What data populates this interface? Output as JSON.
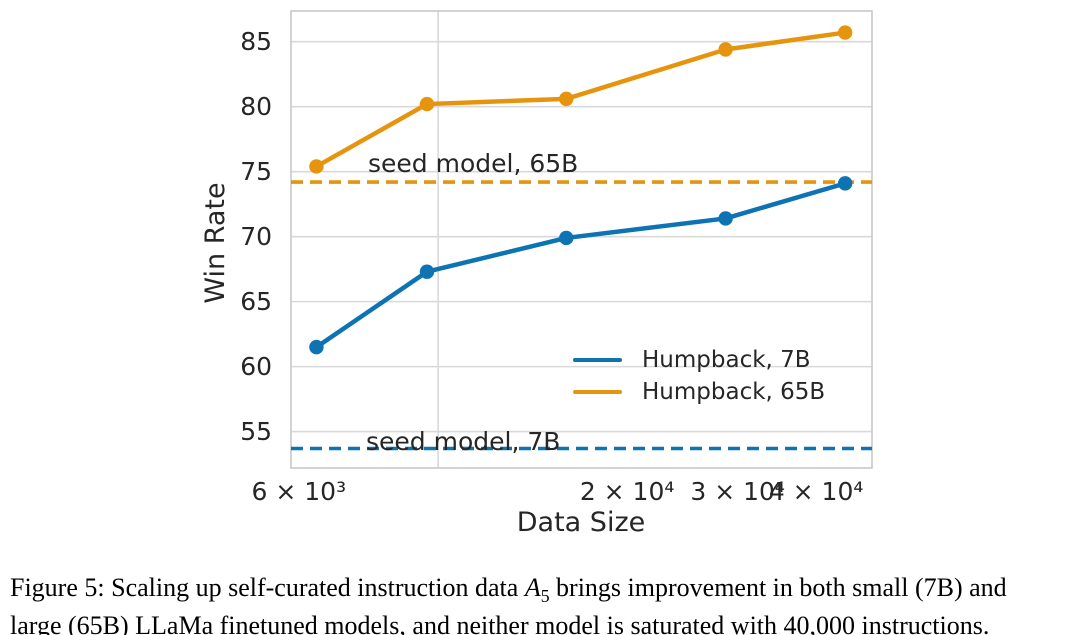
{
  "page": {
    "background": "#ffffff"
  },
  "chart_data": {
    "type": "line",
    "title": "",
    "xlabel": "Data Size",
    "ylabel": "Win Rate",
    "x_scale": "log",
    "xlim": [
      5830,
      49100
    ],
    "ylim": [
      52.2,
      87.36
    ],
    "grid": true,
    "legend_position": "center right, frameless",
    "x": [
      6400,
      9600,
      16000,
      28700,
      44500
    ],
    "series": [
      {
        "name": "Humpback, 7B",
        "color": "#0D73B2",
        "values": [
          61.5,
          67.3,
          69.9,
          71.4,
          74.1
        ]
      },
      {
        "name": "Humpback, 65B",
        "color": "#E6940E",
        "values": [
          75.4,
          80.2,
          80.6,
          84.4,
          85.7
        ]
      }
    ],
    "baselines": [
      {
        "label": "seed model, 7B",
        "value": 53.7,
        "color": "#0D73B2",
        "style": "dashed"
      },
      {
        "label": "seed model, 65B",
        "value": 74.2,
        "color": "#E6940E",
        "style": "dashed"
      }
    ],
    "y_ticks": [
      {
        "value": 85,
        "label": "85"
      },
      {
        "value": 80,
        "label": "80"
      },
      {
        "value": 75,
        "label": "75"
      },
      {
        "value": 70,
        "label": "70"
      },
      {
        "value": 65,
        "label": "65"
      },
      {
        "value": 60,
        "label": "60"
      },
      {
        "value": 55,
        "label": "55"
      }
    ],
    "x_ticks": [
      {
        "value": 6000,
        "label": "6 × 10³"
      },
      {
        "value": 20000,
        "label": "2 × 10⁴"
      },
      {
        "value": 30000,
        "label": "3 × 10⁴"
      },
      {
        "value": 40000,
        "label": "4 × 10⁴"
      }
    ],
    "x_gridlines": [
      10000
    ],
    "colors": {
      "grid": "#D9D9D9",
      "spine": "#C8C8C8",
      "text": "#262626"
    }
  },
  "caption": {
    "line1_pre": "Figure 5: Scaling up self-curated instruction data ",
    "math_symbol": "A",
    "math_sub": "5",
    "line1_post": " brings improvement in both small (7B) and",
    "line2": "large (65B) LLaMa finetuned models, and neither model is saturated with 40,000 instructions."
  }
}
